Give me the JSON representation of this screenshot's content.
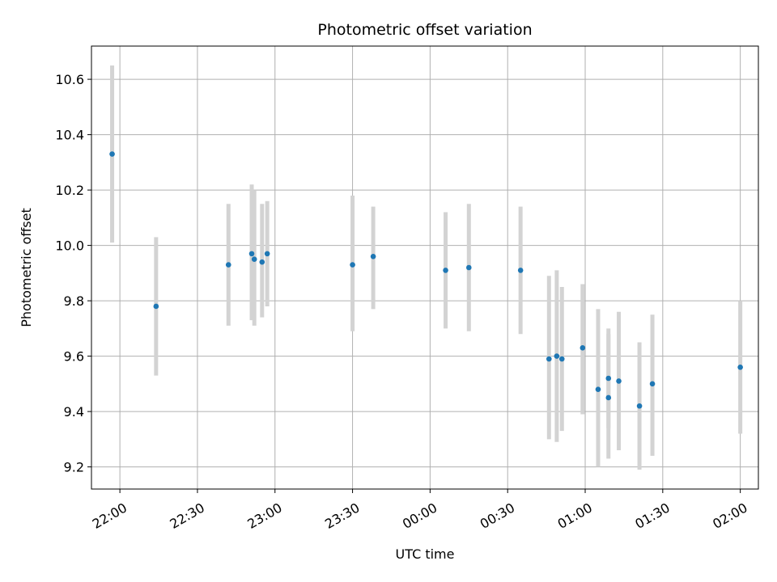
{
  "chart_data": {
    "type": "scatter",
    "title": "Photometric offset variation",
    "xlabel": "UTC time",
    "ylabel": "Photometric offset",
    "grid": true,
    "x_axis_type": "time",
    "x_range": [
      "21:49",
      "02:07"
    ],
    "ylim": [
      9.12,
      10.72
    ],
    "x_ticks": [
      "22:00",
      "22:30",
      "23:00",
      "23:30",
      "00:00",
      "00:30",
      "01:00",
      "01:30",
      "02:00"
    ],
    "y_ticks": [
      9.2,
      9.4,
      9.6,
      9.8,
      10.0,
      10.2,
      10.4,
      10.6
    ],
    "y_tick_labels": [
      "9.2",
      "9.4",
      "9.6",
      "9.8",
      "10.0",
      "10.2",
      "10.4",
      "10.6"
    ],
    "marker_color": "#1f77b4",
    "errorbar_color": "#d3d3d3",
    "points": [
      {
        "x": "21:57",
        "y": 10.33,
        "ylow": 10.01,
        "yhigh": 10.65
      },
      {
        "x": "22:14",
        "y": 9.78,
        "ylow": 9.53,
        "yhigh": 10.03
      },
      {
        "x": "22:42",
        "y": 9.93,
        "ylow": 9.71,
        "yhigh": 10.15
      },
      {
        "x": "22:51",
        "y": 9.97,
        "ylow": 9.73,
        "yhigh": 10.22
      },
      {
        "x": "22:52",
        "y": 9.95,
        "ylow": 9.71,
        "yhigh": 10.2
      },
      {
        "x": "22:55",
        "y": 9.94,
        "ylow": 9.74,
        "yhigh": 10.15
      },
      {
        "x": "22:57",
        "y": 9.97,
        "ylow": 9.78,
        "yhigh": 10.16
      },
      {
        "x": "23:30",
        "y": 9.93,
        "ylow": 9.69,
        "yhigh": 10.18
      },
      {
        "x": "23:38",
        "y": 9.96,
        "ylow": 9.77,
        "yhigh": 10.14
      },
      {
        "x": "00:06",
        "y": 9.91,
        "ylow": 9.7,
        "yhigh": 10.12
      },
      {
        "x": "00:15",
        "y": 9.92,
        "ylow": 9.69,
        "yhigh": 10.15
      },
      {
        "x": "00:35",
        "y": 9.91,
        "ylow": 9.68,
        "yhigh": 10.14
      },
      {
        "x": "00:46",
        "y": 9.59,
        "ylow": 9.3,
        "yhigh": 9.89
      },
      {
        "x": "00:49",
        "y": 9.6,
        "ylow": 9.29,
        "yhigh": 9.91
      },
      {
        "x": "00:51",
        "y": 9.59,
        "ylow": 9.33,
        "yhigh": 9.85
      },
      {
        "x": "00:59",
        "y": 9.63,
        "ylow": 9.39,
        "yhigh": 9.86
      },
      {
        "x": "01:05",
        "y": 9.48,
        "ylow": 9.2,
        "yhigh": 9.77
      },
      {
        "x": "01:09",
        "y": 9.52,
        "ylow": 9.34,
        "yhigh": 9.7
      },
      {
        "x": "01:09",
        "y": 9.45,
        "ylow": 9.23,
        "yhigh": 9.68
      },
      {
        "x": "01:13",
        "y": 9.51,
        "ylow": 9.26,
        "yhigh": 9.76
      },
      {
        "x": "01:21",
        "y": 9.42,
        "ylow": 9.19,
        "yhigh": 9.65
      },
      {
        "x": "01:26",
        "y": 9.5,
        "ylow": 9.24,
        "yhigh": 9.75
      },
      {
        "x": "02:00",
        "y": 9.56,
        "ylow": 9.32,
        "yhigh": 9.8
      }
    ]
  }
}
